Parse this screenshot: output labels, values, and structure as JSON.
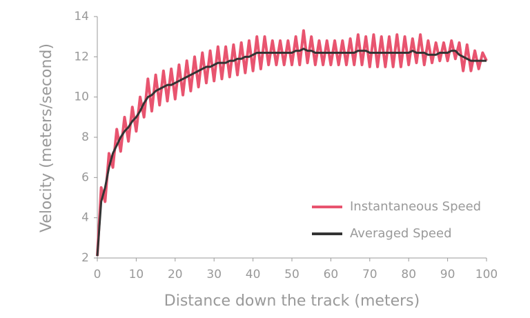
{
  "chart_data": {
    "type": "line",
    "xlabel": "Distance down the track (meters)",
    "ylabel": "Velocity (meters/second)",
    "x": [
      0,
      1,
      2,
      3,
      4,
      5,
      6,
      7,
      8,
      9,
      10,
      11,
      12,
      13,
      14,
      15,
      16,
      17,
      18,
      19,
      20,
      21,
      22,
      23,
      24,
      25,
      26,
      27,
      28,
      29,
      30,
      31,
      32,
      33,
      34,
      35,
      36,
      37,
      38,
      39,
      40,
      41,
      42,
      43,
      44,
      45,
      46,
      47,
      48,
      49,
      50,
      51,
      52,
      53,
      54,
      55,
      56,
      57,
      58,
      59,
      60,
      61,
      62,
      63,
      64,
      65,
      66,
      67,
      68,
      69,
      70,
      71,
      72,
      73,
      74,
      75,
      76,
      77,
      78,
      79,
      80,
      81,
      82,
      83,
      84,
      85,
      86,
      87,
      88,
      89,
      90,
      91,
      92,
      93,
      94,
      95,
      96,
      97,
      98,
      99,
      100
    ],
    "series": [
      {
        "name": "Instantaneous Speed",
        "color": "#e8546f",
        "values": [
          2.1,
          5.5,
          4.8,
          7.2,
          6.5,
          8.4,
          7.3,
          9.0,
          7.8,
          9.5,
          8.3,
          10.0,
          9.0,
          10.9,
          9.3,
          11.1,
          9.6,
          11.3,
          9.8,
          11.4,
          9.9,
          11.6,
          10.1,
          11.8,
          10.3,
          12.0,
          10.5,
          12.2,
          10.7,
          12.3,
          10.8,
          12.5,
          10.9,
          12.5,
          11.0,
          12.6,
          11.1,
          12.7,
          11.2,
          12.8,
          11.3,
          13.0,
          11.4,
          13.0,
          11.6,
          12.8,
          11.6,
          12.8,
          11.6,
          12.8,
          11.6,
          13.0,
          11.6,
          13.3,
          11.7,
          13.0,
          11.6,
          12.8,
          11.6,
          12.8,
          11.6,
          12.8,
          11.6,
          12.8,
          11.6,
          12.9,
          11.6,
          13.1,
          11.6,
          13.0,
          11.5,
          13.1,
          11.5,
          13.0,
          11.5,
          13.0,
          11.5,
          13.1,
          11.5,
          13.0,
          11.6,
          12.9,
          11.7,
          13.1,
          11.6,
          12.8,
          11.7,
          12.7,
          11.8,
          12.7,
          11.8,
          12.8,
          11.9,
          12.7,
          11.3,
          12.6,
          11.3,
          12.3,
          11.4,
          12.2,
          11.8
        ]
      },
      {
        "name": "Averaged Speed",
        "color": "#333333",
        "values": [
          2.1,
          4.8,
          5.5,
          6.5,
          7.2,
          7.6,
          8.0,
          8.3,
          8.5,
          8.8,
          9.0,
          9.3,
          9.7,
          10.0,
          10.1,
          10.3,
          10.4,
          10.5,
          10.6,
          10.6,
          10.7,
          10.8,
          10.9,
          11.0,
          11.1,
          11.2,
          11.3,
          11.4,
          11.5,
          11.5,
          11.6,
          11.7,
          11.7,
          11.7,
          11.8,
          11.8,
          11.9,
          11.9,
          12.0,
          12.0,
          12.1,
          12.2,
          12.2,
          12.2,
          12.2,
          12.2,
          12.2,
          12.2,
          12.2,
          12.2,
          12.2,
          12.3,
          12.3,
          12.4,
          12.3,
          12.3,
          12.2,
          12.2,
          12.2,
          12.2,
          12.2,
          12.2,
          12.2,
          12.2,
          12.2,
          12.2,
          12.2,
          12.3,
          12.3,
          12.3,
          12.2,
          12.2,
          12.2,
          12.2,
          12.2,
          12.2,
          12.2,
          12.2,
          12.2,
          12.2,
          12.2,
          12.3,
          12.2,
          12.2,
          12.2,
          12.1,
          12.1,
          12.1,
          12.2,
          12.2,
          12.2,
          12.3,
          12.3,
          12.1,
          12.0,
          11.9,
          11.8,
          11.8,
          11.8,
          11.8,
          11.8
        ]
      }
    ],
    "xlim": [
      0,
      100
    ],
    "xticks": [
      0,
      10,
      20,
      30,
      40,
      50,
      60,
      70,
      80,
      90,
      100
    ],
    "ylim": [
      2,
      14
    ],
    "yticks": [
      2,
      4,
      6,
      8,
      10,
      12,
      14
    ],
    "legend": "lower right"
  }
}
